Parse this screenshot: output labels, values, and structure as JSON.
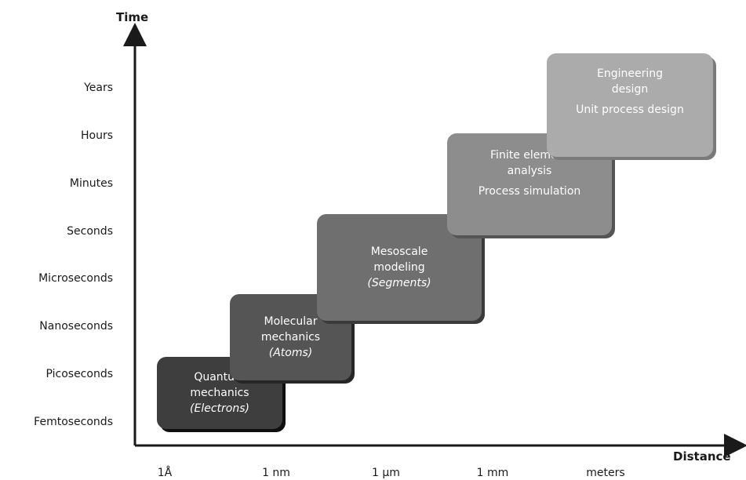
{
  "axes": {
    "y_title": "Time",
    "x_title": "Distance",
    "y_ticks": [
      "Years",
      "Hours",
      "Minutes",
      "Seconds",
      "Microseconds",
      "Nanoseconds",
      "Picoseconds",
      "Femtoseconds"
    ],
    "x_ticks": [
      "1Å",
      "1 nm",
      "1 µm",
      "1 mm",
      "meters"
    ]
  },
  "boxes": [
    {
      "line1": "Quantum",
      "line2": "mechanics",
      "line3": "(Electrons)",
      "color": "#3e3e3e"
    },
    {
      "line1": "Molecular",
      "line2": "mechanics",
      "line3": "(Atoms)",
      "color": "#555555"
    },
    {
      "line1": "Mesoscale",
      "line2": "modeling",
      "line3": "(Segments)",
      "color": "#6f6f6f"
    },
    {
      "line1": "Finite element",
      "line2": "analysis",
      "line3": "Process simulation",
      "color": "#8d8d8d"
    },
    {
      "line1": "Engineering",
      "line2": "design",
      "line3": "Unit process design",
      "color": "#ababab"
    }
  ]
}
